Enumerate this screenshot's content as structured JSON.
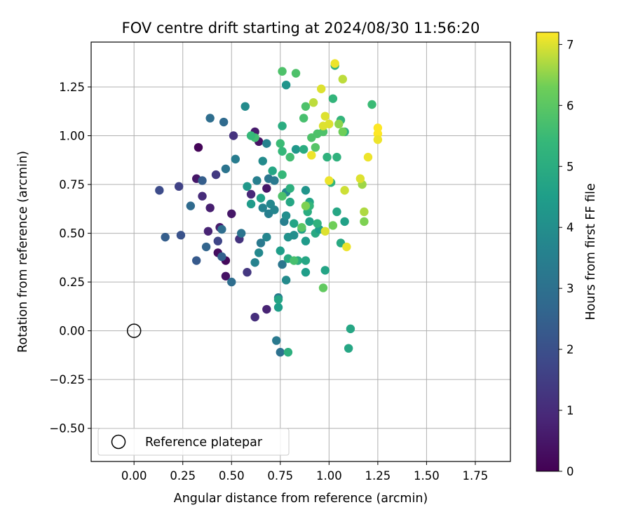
{
  "chart_data": {
    "type": "scatter",
    "title": "FOV centre drift starting at 2024/08/30 11:56:20",
    "xlabel": "Angular distance from reference (arcmin)",
    "ylabel": "Rotation from reference (arcmin)",
    "xlim": [
      -0.22,
      1.93
    ],
    "ylim": [
      -0.67,
      1.48
    ],
    "xticks": [
      "0.00",
      "0.25",
      "0.50",
      "0.75",
      "1.00",
      "1.25",
      "1.50",
      "1.75"
    ],
    "yticks": [
      "−0.50",
      "−0.25",
      "0.00",
      "0.25",
      "0.50",
      "0.75",
      "1.00",
      "1.25"
    ],
    "grid": true,
    "legend": {
      "location": "lower-left",
      "entries": [
        "Reference platepar"
      ]
    },
    "colorbar": {
      "label": "Hours from first FF file",
      "range": [
        0,
        7.2
      ],
      "ticks": [
        "0",
        "1",
        "2",
        "3",
        "4",
        "5",
        "6",
        "7"
      ],
      "colormap": "viridis"
    },
    "reference_point": {
      "x": 0.0,
      "y": 0.0,
      "label": "Reference platepar"
    },
    "series": [
      {
        "color_by": "hours",
        "points": [
          {
            "x": 0.33,
            "y": 0.94,
            "h": 0.1
          },
          {
            "x": 0.32,
            "y": 0.78,
            "h": 0.5
          },
          {
            "x": 0.39,
            "y": 0.63,
            "h": 0.7
          },
          {
            "x": 0.43,
            "y": 0.4,
            "h": 0.3
          },
          {
            "x": 0.47,
            "y": 0.36,
            "h": 0.2
          },
          {
            "x": 0.47,
            "y": 0.28,
            "h": 0.4
          },
          {
            "x": 0.5,
            "y": 0.6,
            "h": 0.5
          },
          {
            "x": 0.38,
            "y": 0.51,
            "h": 0.8
          },
          {
            "x": 0.44,
            "y": 0.53,
            "h": 0.6
          },
          {
            "x": 0.35,
            "y": 0.69,
            "h": 1.0
          },
          {
            "x": 0.42,
            "y": 0.8,
            "h": 1.4
          },
          {
            "x": 0.51,
            "y": 1.0,
            "h": 1.2
          },
          {
            "x": 0.58,
            "y": 0.3,
            "h": 1.3
          },
          {
            "x": 0.62,
            "y": 0.07,
            "h": 1.1
          },
          {
            "x": 0.68,
            "y": 0.11,
            "h": 0.8
          },
          {
            "x": 0.62,
            "y": 1.02,
            "h": 0.6
          },
          {
            "x": 0.64,
            "y": 0.97,
            "h": 0.4
          },
          {
            "x": 0.68,
            "y": 0.73,
            "h": 0.5
          },
          {
            "x": 0.6,
            "y": 0.7,
            "h": 0.9
          },
          {
            "x": 0.54,
            "y": 0.47,
            "h": 1.2
          },
          {
            "x": 0.43,
            "y": 0.46,
            "h": 1.7
          },
          {
            "x": 0.13,
            "y": 0.72,
            "h": 1.9
          },
          {
            "x": 0.23,
            "y": 0.74,
            "h": 1.6
          },
          {
            "x": 0.24,
            "y": 0.49,
            "h": 2.1
          },
          {
            "x": 0.16,
            "y": 0.48,
            "h": 2.4
          },
          {
            "x": 0.32,
            "y": 0.36,
            "h": 2.3
          },
          {
            "x": 0.37,
            "y": 0.43,
            "h": 2.6
          },
          {
            "x": 0.35,
            "y": 0.77,
            "h": 2.4
          },
          {
            "x": 0.29,
            "y": 0.64,
            "h": 2.8
          },
          {
            "x": 0.39,
            "y": 1.09,
            "h": 2.9
          },
          {
            "x": 0.46,
            "y": 1.07,
            "h": 2.8
          },
          {
            "x": 0.47,
            "y": 0.83,
            "h": 3.1
          },
          {
            "x": 0.45,
            "y": 0.52,
            "h": 2.9
          },
          {
            "x": 0.45,
            "y": 0.38,
            "h": 2.5
          },
          {
            "x": 0.5,
            "y": 0.25,
            "h": 2.9
          },
          {
            "x": 0.55,
            "y": 0.5,
            "h": 3.1
          },
          {
            "x": 0.52,
            "y": 0.88,
            "h": 3.4
          },
          {
            "x": 0.57,
            "y": 1.15,
            "h": 3.9
          },
          {
            "x": 0.62,
            "y": 0.35,
            "h": 3.6
          },
          {
            "x": 0.64,
            "y": 0.4,
            "h": 3.8
          },
          {
            "x": 0.65,
            "y": 0.45,
            "h": 3.3
          },
          {
            "x": 0.66,
            "y": 0.63,
            "h": 3.6
          },
          {
            "x": 0.63,
            "y": 0.77,
            "h": 3.5
          },
          {
            "x": 0.66,
            "y": 0.87,
            "h": 3.9
          },
          {
            "x": 0.68,
            "y": 0.96,
            "h": 3.6
          },
          {
            "x": 0.68,
            "y": 0.48,
            "h": 3.7
          },
          {
            "x": 0.69,
            "y": 0.6,
            "h": 3.5
          },
          {
            "x": 0.7,
            "y": 0.65,
            "h": 3.8
          },
          {
            "x": 0.69,
            "y": 0.78,
            "h": 3.2
          },
          {
            "x": 0.72,
            "y": 0.62,
            "h": 3.7
          },
          {
            "x": 0.72,
            "y": 0.77,
            "h": 3.3
          },
          {
            "x": 0.74,
            "y": 0.17,
            "h": 3.4
          },
          {
            "x": 0.73,
            "y": -0.05,
            "h": 3.3
          },
          {
            "x": 0.75,
            "y": -0.11,
            "h": 3.0
          },
          {
            "x": 0.76,
            "y": 0.34,
            "h": 3.2
          },
          {
            "x": 0.77,
            "y": 0.56,
            "h": 3.5
          },
          {
            "x": 0.78,
            "y": 0.26,
            "h": 3.9
          },
          {
            "x": 0.78,
            "y": 0.59,
            "h": 4.0
          },
          {
            "x": 0.78,
            "y": 0.71,
            "h": 3.8
          },
          {
            "x": 0.79,
            "y": 0.48,
            "h": 4.1
          },
          {
            "x": 0.78,
            "y": 1.26,
            "h": 4.2
          },
          {
            "x": 0.82,
            "y": 0.49,
            "h": 4.0
          },
          {
            "x": 0.83,
            "y": 0.93,
            "h": 4.3
          },
          {
            "x": 0.6,
            "y": 0.65,
            "h": 4.4
          },
          {
            "x": 0.58,
            "y": 0.74,
            "h": 4.3
          },
          {
            "x": 0.65,
            "y": 0.68,
            "h": 4.6
          },
          {
            "x": 0.71,
            "y": 0.82,
            "h": 4.8
          },
          {
            "x": 0.74,
            "y": 0.12,
            "h": 4.5
          },
          {
            "x": 0.74,
            "y": 0.16,
            "h": 4.7
          },
          {
            "x": 0.75,
            "y": 0.41,
            "h": 4.5
          },
          {
            "x": 0.79,
            "y": 0.37,
            "h": 4.9
          },
          {
            "x": 0.8,
            "y": 0.66,
            "h": 4.8
          },
          {
            "x": 0.82,
            "y": 0.55,
            "h": 4.7
          },
          {
            "x": 0.84,
            "y": 0.36,
            "h": 5.0
          },
          {
            "x": 0.86,
            "y": 0.52,
            "h": 4.6
          },
          {
            "x": 0.88,
            "y": 0.36,
            "h": 4.8
          },
          {
            "x": 0.88,
            "y": 0.3,
            "h": 4.5
          },
          {
            "x": 0.88,
            "y": 0.46,
            "h": 4.4
          },
          {
            "x": 0.88,
            "y": 0.72,
            "h": 4.2
          },
          {
            "x": 0.9,
            "y": 0.56,
            "h": 4.6
          },
          {
            "x": 0.9,
            "y": 0.66,
            "h": 4.7
          },
          {
            "x": 0.89,
            "y": 0.61,
            "h": 5.0
          },
          {
            "x": 0.93,
            "y": 0.5,
            "h": 4.9
          },
          {
            "x": 0.95,
            "y": 0.52,
            "h": 4.5
          },
          {
            "x": 0.98,
            "y": 0.31,
            "h": 4.7
          },
          {
            "x": 1.04,
            "y": 0.61,
            "h": 4.8
          },
          {
            "x": 1.06,
            "y": 0.45,
            "h": 4.9
          },
          {
            "x": 1.08,
            "y": 0.56,
            "h": 4.6
          },
          {
            "x": 1.11,
            "y": 0.01,
            "h": 4.8
          },
          {
            "x": 1.1,
            "y": -0.09,
            "h": 4.8
          },
          {
            "x": 0.76,
            "y": 1.05,
            "h": 5.0
          },
          {
            "x": 0.8,
            "y": 0.73,
            "h": 5.1
          },
          {
            "x": 0.79,
            "y": -0.11,
            "h": 5.1
          },
          {
            "x": 0.87,
            "y": 0.93,
            "h": 5.0
          },
          {
            "x": 0.9,
            "y": 0.64,
            "h": 5.3
          },
          {
            "x": 0.94,
            "y": 0.55,
            "h": 5.2
          },
          {
            "x": 0.99,
            "y": 0.89,
            "h": 5.2
          },
          {
            "x": 1.01,
            "y": 0.76,
            "h": 5.3
          },
          {
            "x": 1.03,
            "y": 1.36,
            "h": 5.2
          },
          {
            "x": 1.02,
            "y": 1.19,
            "h": 5.3
          },
          {
            "x": 1.04,
            "y": 0.89,
            "h": 5.2
          },
          {
            "x": 1.06,
            "y": 1.08,
            "h": 5.3
          },
          {
            "x": 1.08,
            "y": 1.02,
            "h": 5.1
          },
          {
            "x": 1.22,
            "y": 1.16,
            "h": 5.5
          },
          {
            "x": 0.75,
            "y": 0.96,
            "h": 5.5
          },
          {
            "x": 0.76,
            "y": 0.92,
            "h": 5.4
          },
          {
            "x": 0.76,
            "y": 0.8,
            "h": 5.4
          },
          {
            "x": 0.8,
            "y": 0.89,
            "h": 5.6
          },
          {
            "x": 0.62,
            "y": 0.99,
            "h": 5.6
          },
          {
            "x": 0.6,
            "y": 1.0,
            "h": 5.4
          },
          {
            "x": 0.76,
            "y": 1.33,
            "h": 5.8
          },
          {
            "x": 0.83,
            "y": 1.32,
            "h": 5.8
          },
          {
            "x": 0.87,
            "y": 1.09,
            "h": 5.7
          },
          {
            "x": 0.88,
            "y": 1.15,
            "h": 5.8
          },
          {
            "x": 0.91,
            "y": 0.99,
            "h": 5.8
          },
          {
            "x": 0.93,
            "y": 0.94,
            "h": 5.9
          },
          {
            "x": 0.94,
            "y": 1.01,
            "h": 5.8
          },
          {
            "x": 0.97,
            "y": 1.02,
            "h": 5.8
          },
          {
            "x": 0.97,
            "y": 0.22,
            "h": 6.1
          },
          {
            "x": 0.76,
            "y": 0.69,
            "h": 5.8
          },
          {
            "x": 0.82,
            "y": 0.36,
            "h": 5.7
          },
          {
            "x": 0.86,
            "y": 0.53,
            "h": 6.0
          },
          {
            "x": 0.88,
            "y": 0.64,
            "h": 6.4
          },
          {
            "x": 1.02,
            "y": 0.54,
            "h": 6.3
          },
          {
            "x": 1.07,
            "y": 1.02,
            "h": 6.3
          },
          {
            "x": 1.05,
            "y": 1.06,
            "h": 6.5
          },
          {
            "x": 1.17,
            "y": 0.75,
            "h": 6.6
          },
          {
            "x": 1.18,
            "y": 0.56,
            "h": 6.4
          },
          {
            "x": 1.18,
            "y": 0.61,
            "h": 6.7
          },
          {
            "x": 0.92,
            "y": 1.17,
            "h": 6.8
          },
          {
            "x": 0.96,
            "y": 1.24,
            "h": 7.0
          },
          {
            "x": 0.98,
            "y": 1.1,
            "h": 7.0
          },
          {
            "x": 0.97,
            "y": 1.05,
            "h": 7.0
          },
          {
            "x": 1.0,
            "y": 1.06,
            "h": 7.0
          },
          {
            "x": 1.03,
            "y": 1.37,
            "h": 7.1
          },
          {
            "x": 1.07,
            "y": 1.29,
            "h": 6.8
          },
          {
            "x": 0.91,
            "y": 0.9,
            "h": 7.1
          },
          {
            "x": 0.98,
            "y": 0.51,
            "h": 7.0
          },
          {
            "x": 1.0,
            "y": 0.77,
            "h": 7.1
          },
          {
            "x": 1.08,
            "y": 0.72,
            "h": 6.9
          },
          {
            "x": 1.09,
            "y": 0.43,
            "h": 7.1
          },
          {
            "x": 1.16,
            "y": 0.78,
            "h": 7.0
          },
          {
            "x": 1.2,
            "y": 0.89,
            "h": 7.1
          },
          {
            "x": 1.25,
            "y": 1.04,
            "h": 7.2
          },
          {
            "x": 1.25,
            "y": 1.01,
            "h": 7.2
          },
          {
            "x": 1.25,
            "y": 0.98,
            "h": 7.1
          }
        ]
      }
    ]
  }
}
